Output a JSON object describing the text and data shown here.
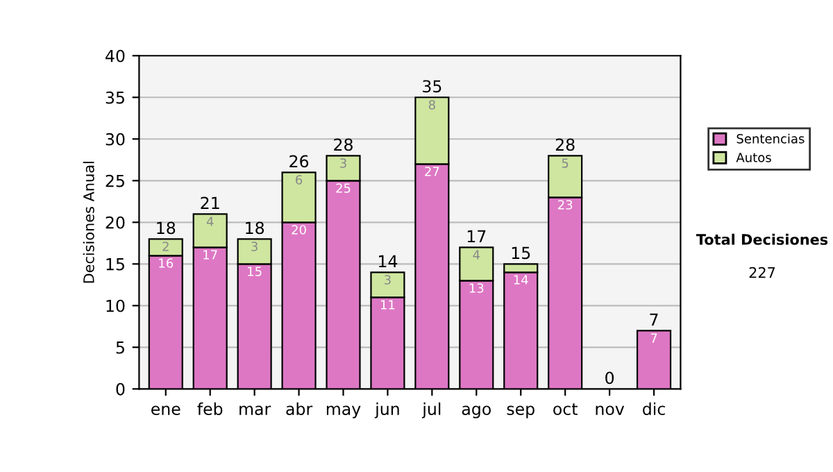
{
  "chart_data": {
    "type": "bar",
    "stacked": true,
    "ylabel": "Decisiones Anual",
    "categories": [
      "ene",
      "feb",
      "mar",
      "abr",
      "may",
      "jun",
      "jul",
      "ago",
      "sep",
      "oct",
      "nov",
      "dic"
    ],
    "series": [
      {
        "name": "Sentencias",
        "color": "#dd77c4",
        "values": [
          16,
          17,
          15,
          20,
          25,
          11,
          27,
          13,
          14,
          23,
          0,
          7
        ],
        "value_labels": [
          "16",
          "17",
          "15",
          "20",
          "25",
          "11",
          "27",
          "13",
          "14",
          "23",
          null,
          "7"
        ]
      },
      {
        "name": "Autos",
        "color": "#cfe6a0",
        "values": [
          2,
          4,
          3,
          6,
          3,
          3,
          8,
          4,
          1,
          5,
          0,
          0
        ],
        "value_labels": [
          "2",
          "4",
          "3",
          "6",
          "3",
          "3",
          "8",
          "4",
          null,
          "5",
          null,
          null
        ]
      }
    ],
    "totals": [
      "18",
      "21",
      "18",
      "26",
      "28",
      "14",
      "35",
      "17",
      "15",
      "28",
      "0",
      "7"
    ],
    "ylim": [
      0,
      40
    ],
    "yticks": [
      0,
      5,
      10,
      15,
      20,
      25,
      30,
      35,
      40
    ],
    "grid": "y",
    "legend": "right",
    "annotations": [
      "Total Decisiones",
      "227"
    ]
  }
}
